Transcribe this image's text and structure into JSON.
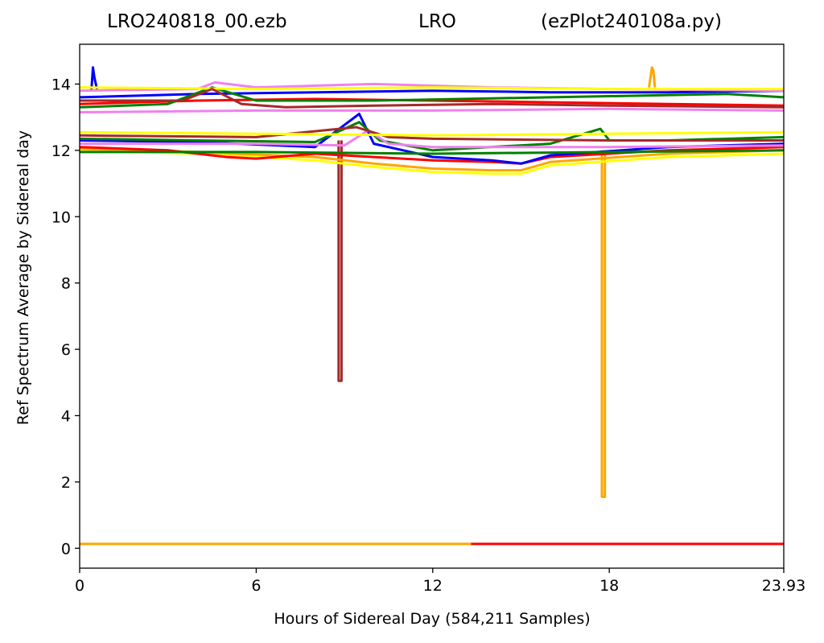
{
  "chart_data": {
    "type": "line",
    "title_parts": [
      "LRO240818_00.ezb",
      "LRO",
      "(ezPlot240108a.py)"
    ],
    "xlabel": "Hours of Sidereal Day  (584,211 Samples)",
    "ylabel": "Ref Spectrum Average by Sidereal day",
    "xlim": [
      0,
      23.93
    ],
    "ylim": [
      -0.6,
      15.2
    ],
    "x_ticks": [
      0,
      6,
      12,
      18,
      23.93
    ],
    "x_tick_labels": [
      "0",
      "6",
      "12",
      "18",
      "23.93"
    ],
    "y_ticks": [
      0,
      2,
      4,
      6,
      8,
      10,
      12,
      14
    ],
    "y_tick_labels": [
      "0",
      "2",
      "4",
      "6",
      "8",
      "10",
      "12",
      "14"
    ],
    "grid": false,
    "colors": [
      "#0000ff",
      "#ff0000",
      "#008000",
      "#ee82ee",
      "#ffa500",
      "#ffff00",
      "#a52a2a"
    ],
    "series": [
      {
        "color": "#ffa500",
        "x": [
          0,
          13.3
        ],
        "y": [
          0.13,
          0.13
        ]
      },
      {
        "color": "#ff0000",
        "x": [
          13.3,
          23.93
        ],
        "y": [
          0.13,
          0.13
        ]
      },
      {
        "color": "#a52a2a",
        "x": [
          8.8,
          8.8,
          8.9,
          8.9
        ],
        "y": [
          12.3,
          5.05,
          5.05,
          12.3
        ]
      },
      {
        "color": "#ffa500",
        "x": [
          17.75,
          17.75,
          17.85,
          17.85
        ],
        "y": [
          12.0,
          1.55,
          1.55,
          12.0
        ]
      },
      {
        "color": "#ffa500",
        "x": [
          19.35,
          19.45,
          19.5,
          19.55
        ],
        "y": [
          13.9,
          14.5,
          14.4,
          13.9
        ]
      },
      {
        "color": "#0000ff",
        "x": [
          0.4,
          0.45,
          0.5,
          0.6
        ],
        "y": [
          13.8,
          14.5,
          14.2,
          13.8
        ]
      },
      {
        "color": "#ff0000",
        "x": [
          0,
          4,
          8,
          12,
          16,
          20,
          23.93
        ],
        "y": [
          13.4,
          13.5,
          13.55,
          13.5,
          13.45,
          13.4,
          13.35
        ]
      },
      {
        "color": "#0000ff",
        "x": [
          0,
          4,
          8,
          12,
          16,
          20,
          23.93
        ],
        "y": [
          13.6,
          13.7,
          13.75,
          13.8,
          13.75,
          13.75,
          13.8
        ]
      },
      {
        "color": "#008000",
        "x": [
          0,
          3,
          4.5,
          6,
          10,
          16,
          22,
          23.93
        ],
        "y": [
          13.3,
          13.4,
          13.9,
          13.5,
          13.5,
          13.6,
          13.7,
          13.6
        ]
      },
      {
        "color": "#ee82ee",
        "x": [
          0,
          4,
          4.6,
          6,
          10,
          14,
          18,
          23.93
        ],
        "y": [
          13.8,
          13.85,
          14.05,
          13.9,
          14.0,
          13.9,
          13.85,
          13.8
        ]
      },
      {
        "color": "#ffff00",
        "x": [
          0,
          6,
          12,
          18,
          23.93
        ],
        "y": [
          13.9,
          13.85,
          13.9,
          13.85,
          13.85
        ]
      },
      {
        "color": "#a52a2a",
        "x": [
          0,
          3.5,
          4.5,
          5.5,
          7,
          10,
          14,
          18,
          23.93
        ],
        "y": [
          13.5,
          13.5,
          13.85,
          13.4,
          13.3,
          13.35,
          13.4,
          13.35,
          13.3
        ]
      },
      {
        "color": "#ee82ee",
        "x": [
          0,
          6,
          12,
          18,
          23.93
        ],
        "y": [
          13.15,
          13.2,
          13.2,
          13.25,
          13.2
        ]
      },
      {
        "color": "#ffff00",
        "x": [
          0,
          4,
          8,
          10,
          12,
          14,
          15,
          16,
          20,
          23.93
        ],
        "y": [
          12.0,
          11.9,
          11.7,
          11.5,
          11.35,
          11.3,
          11.3,
          11.55,
          11.8,
          11.9
        ]
      },
      {
        "color": "#ffa500",
        "x": [
          0,
          4,
          8,
          10,
          12,
          14,
          15,
          16,
          20,
          23.93
        ],
        "y": [
          12.05,
          11.95,
          11.8,
          11.6,
          11.45,
          11.4,
          11.4,
          11.65,
          11.9,
          12.0
        ]
      },
      {
        "color": "#ff0000",
        "x": [
          0,
          3,
          5,
          6,
          8,
          12,
          14,
          15,
          16,
          20,
          23.93
        ],
        "y": [
          12.1,
          12.0,
          11.8,
          11.75,
          11.9,
          11.7,
          11.65,
          11.6,
          11.8,
          12.0,
          12.1
        ]
      },
      {
        "color": "#0000ff",
        "x": [
          0,
          4,
          8,
          9.5,
          10,
          12,
          14,
          15,
          16,
          20,
          23.93
        ],
        "y": [
          12.3,
          12.25,
          12.1,
          13.1,
          12.2,
          11.8,
          11.7,
          11.6,
          11.85,
          12.1,
          12.2
        ]
      },
      {
        "color": "#008000",
        "x": [
          0,
          4,
          8,
          9.5,
          10.2,
          12,
          16,
          17.7,
          18,
          20,
          23.93
        ],
        "y": [
          12.35,
          12.3,
          12.25,
          12.85,
          12.3,
          12.0,
          12.2,
          12.65,
          12.3,
          12.3,
          12.4
        ]
      },
      {
        "color": "#ee82ee",
        "x": [
          0,
          6,
          9,
          9.8,
          10.5,
          12,
          18,
          23.93
        ],
        "y": [
          12.2,
          12.2,
          12.15,
          12.6,
          12.2,
          12.1,
          12.1,
          12.15
        ]
      },
      {
        "color": "#a52a2a",
        "x": [
          0,
          6,
          9.4,
          10.5,
          12,
          18,
          23.93
        ],
        "y": [
          12.45,
          12.4,
          12.7,
          12.4,
          12.35,
          12.3,
          12.3
        ]
      },
      {
        "color": "#ffff00",
        "x": [
          0,
          6,
          12,
          18,
          23.93
        ],
        "y": [
          12.55,
          12.5,
          12.45,
          12.5,
          12.55
        ]
      },
      {
        "color": "#008000",
        "x": [
          0,
          6,
          12,
          18,
          23.93
        ],
        "y": [
          11.95,
          11.95,
          11.9,
          11.95,
          12.0
        ]
      }
    ]
  }
}
